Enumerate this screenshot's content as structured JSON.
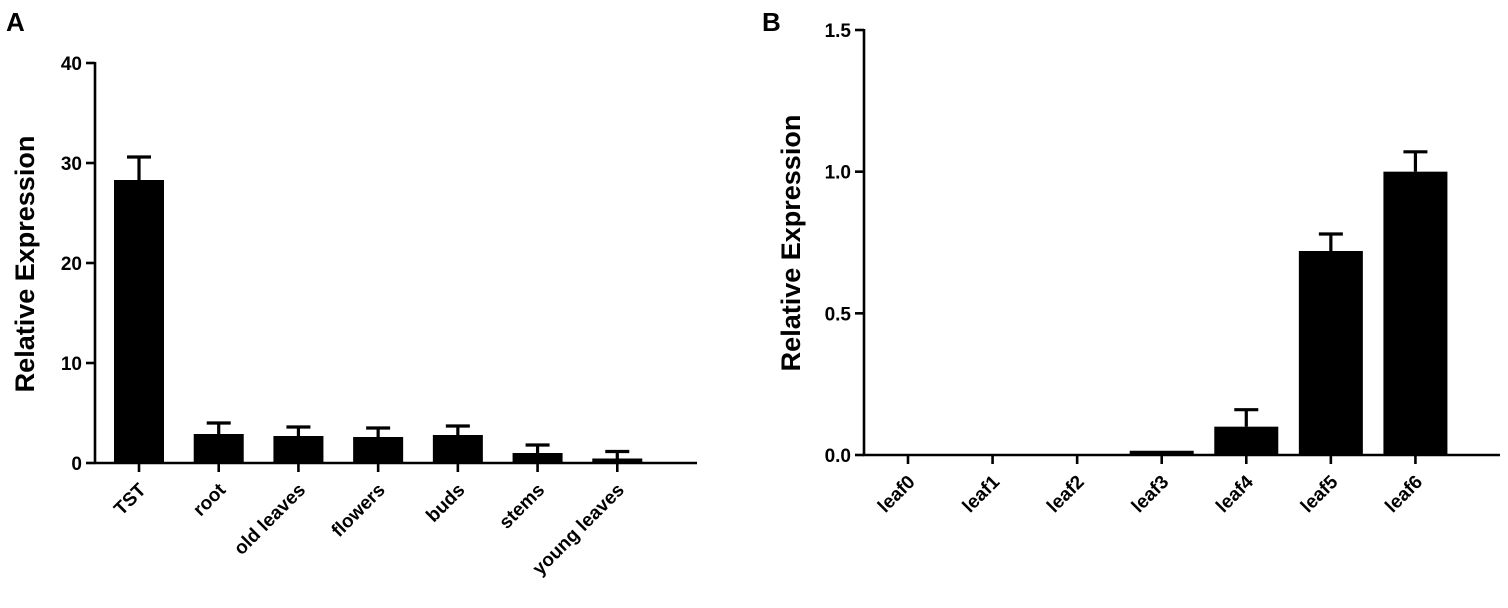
{
  "chart_data": [
    {
      "panel": "A",
      "type": "bar",
      "ylabel": "Relative Expression",
      "xlabel": "",
      "ylim": [
        0,
        40
      ],
      "yticks": [
        0,
        10,
        20,
        30,
        40
      ],
      "ytick_labels": [
        "0",
        "10",
        "20",
        "30",
        "40"
      ],
      "categories": [
        "TST",
        "root",
        "old leaves",
        "flowers",
        "buds",
        "stems",
        "young leaves"
      ],
      "values": [
        28.3,
        2.9,
        2.7,
        2.6,
        2.8,
        1.0,
        0.45
      ],
      "errors": [
        2.3,
        1.1,
        0.9,
        0.9,
        0.9,
        0.8,
        0.7
      ],
      "bar_color": "#000000",
      "grid": false,
      "legend": "none"
    },
    {
      "panel": "B",
      "type": "bar",
      "ylabel": "Relative Expression",
      "xlabel": "",
      "ylim": [
        0,
        1.5
      ],
      "yticks": [
        0,
        0.5,
        1.0,
        1.5
      ],
      "ytick_labels": [
        "0.0",
        "0.5",
        "1.0",
        "1.5"
      ],
      "categories": [
        "leaf0",
        "leaf1",
        "leaf2",
        "leaf3",
        "leaf4",
        "leaf5",
        "leaf6"
      ],
      "values": [
        0.0,
        0.0,
        0.0,
        0.015,
        0.1,
        0.72,
        1.0
      ],
      "errors": [
        0.0,
        0.0,
        0.0,
        0.0,
        0.06,
        0.06,
        0.07
      ],
      "bar_color": "#000000",
      "grid": false,
      "legend": "none"
    }
  ]
}
